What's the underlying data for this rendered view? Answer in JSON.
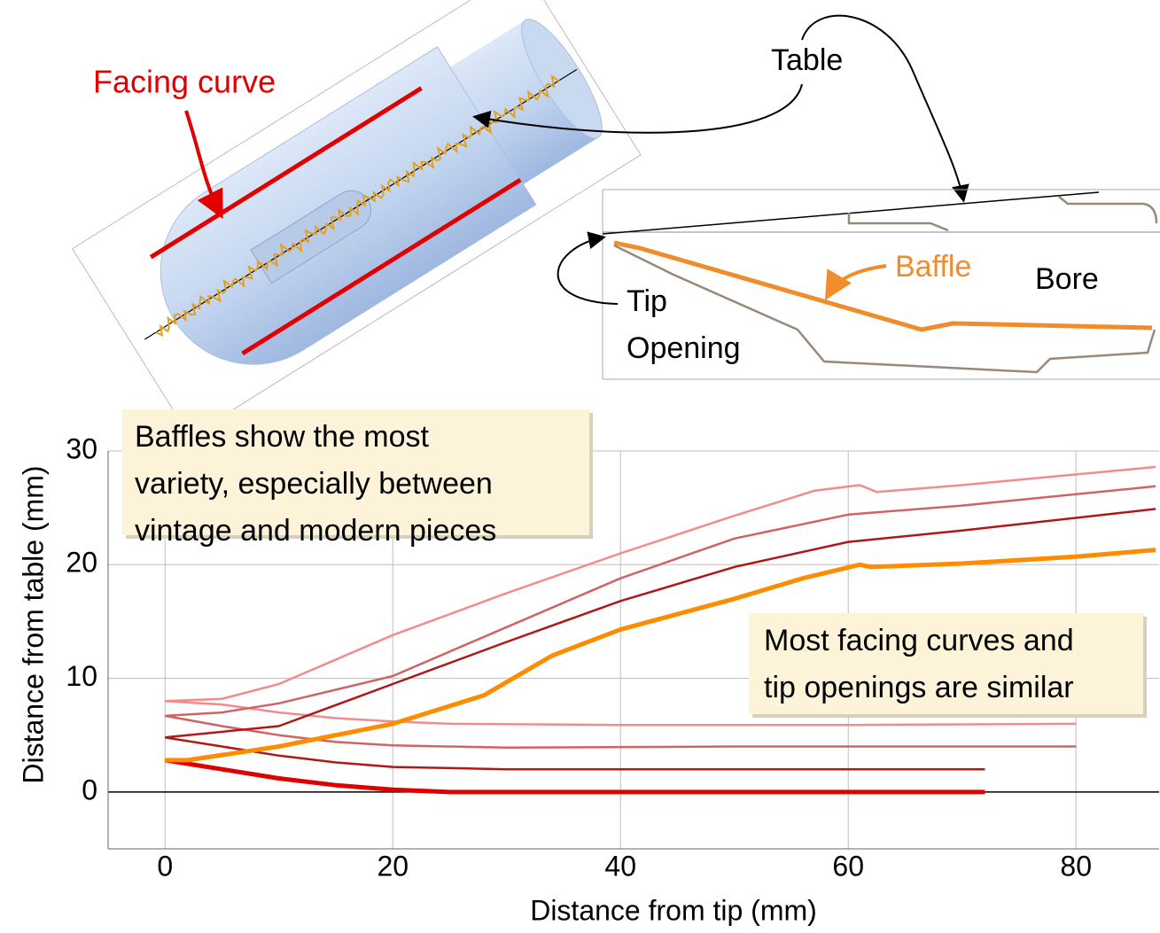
{
  "illustration": {
    "facing_label": "Facing curve",
    "table_label": "Table",
    "baffle_label": "Baffle",
    "bore_label": "Bore",
    "tip_label": [
      "Tip",
      "Opening"
    ]
  },
  "chart_data": {
    "type": "line",
    "xlabel": "Distance from tip (mm)",
    "ylabel": "Distance from table (mm)",
    "xlim": [
      -5,
      87.3
    ],
    "ylim": [
      -5,
      30
    ],
    "xticks": [
      0,
      20,
      40,
      60,
      80
    ],
    "yticks": [
      0,
      10,
      20,
      30
    ],
    "grid": true,
    "annotations": [
      {
        "lines": [
          "Baffles show the most",
          "variety, especially between",
          "vintage and modern pieces"
        ]
      },
      {
        "lines": [
          "Most facing curves and",
          "tip openings are similar"
        ]
      }
    ],
    "series": [
      {
        "color": "#f28b8b",
        "linewidth": 2.5,
        "x": [
          0,
          5,
          10,
          15,
          20,
          25,
          40,
          60,
          80
        ],
        "values": [
          8,
          7.7,
          7,
          6.5,
          6.2,
          6,
          5.9,
          5.9,
          6
        ]
      },
      {
        "color": "#d06464",
        "linewidth": 2.5,
        "x": [
          0,
          5,
          10,
          15,
          20,
          30,
          50,
          80
        ],
        "values": [
          6.7,
          5.8,
          5,
          4.4,
          4.1,
          3.9,
          4,
          4
        ]
      },
      {
        "color": "#b01818",
        "linewidth": 2.5,
        "x": [
          0,
          5,
          10,
          15,
          20,
          30,
          50,
          72
        ],
        "values": [
          4.8,
          4,
          3.2,
          2.6,
          2.2,
          2,
          2,
          2
        ]
      },
      {
        "color": "#e00000",
        "linewidth": 5,
        "x": [
          0,
          5,
          10,
          15,
          20,
          25,
          50,
          72
        ],
        "values": [
          2.8,
          2,
          1.2,
          0.6,
          0.2,
          0,
          0,
          0
        ]
      },
      {
        "color": "#f28b8b",
        "linewidth": 2.5,
        "x": [
          0,
          5,
          10,
          20,
          30,
          40,
          50,
          57,
          61,
          62.5,
          70,
          87
        ],
        "values": [
          8,
          8.2,
          9.5,
          13.8,
          17.5,
          21,
          24.3,
          26.5,
          27,
          26.4,
          27,
          28.6
        ]
      },
      {
        "color": "#d06464",
        "linewidth": 2.5,
        "x": [
          0,
          5,
          10,
          20,
          30,
          40,
          50,
          60,
          70,
          87
        ],
        "values": [
          6.7,
          7,
          7.8,
          10.2,
          14.5,
          18.8,
          22.3,
          24.4,
          25.2,
          26.9
        ]
      },
      {
        "color": "#b01818",
        "linewidth": 2.5,
        "x": [
          0,
          10,
          20,
          30,
          40,
          50,
          60,
          70,
          87
        ],
        "values": [
          4.8,
          5.8,
          9.5,
          13.2,
          16.8,
          19.8,
          22,
          23,
          24.9
        ]
      },
      {
        "color": "#ff8c00",
        "linewidth": 5,
        "x": [
          0,
          2,
          10,
          20,
          28,
          34,
          40,
          50,
          56,
          61,
          62,
          70,
          80,
          87
        ],
        "values": [
          2.8,
          2.8,
          4,
          6,
          8.5,
          12,
          14.3,
          17,
          18.8,
          20,
          19.8,
          20.1,
          20.7,
          21.3
        ]
      }
    ]
  }
}
